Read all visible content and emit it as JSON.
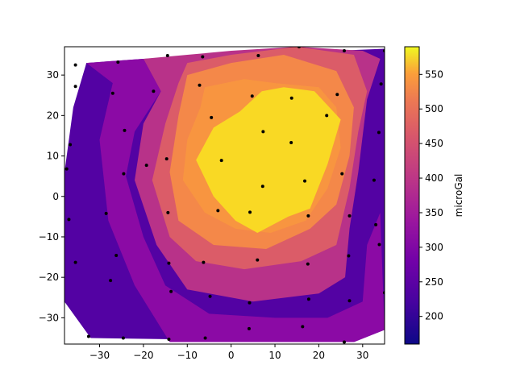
{
  "chart_data": {
    "type": "contour",
    "title": "",
    "xlabel": "",
    "ylabel": "",
    "xlim": [
      -38,
      35
    ],
    "ylim": [
      -36.5,
      37
    ],
    "x_ticks": [
      -30,
      -20,
      -10,
      0,
      10,
      20,
      30
    ],
    "y_ticks": [
      -30,
      -20,
      -10,
      0,
      10,
      20,
      30
    ],
    "colorbar": {
      "label": "microGal",
      "range": [
        160,
        590
      ],
      "ticks": [
        200,
        250,
        300,
        350,
        400,
        450,
        500,
        550
      ],
      "colormap": "plasma"
    },
    "levels": [
      {
        "from": 160,
        "to": 200,
        "color": "#2c0594"
      },
      {
        "from": 200,
        "to": 250,
        "color": "#5302a3"
      },
      {
        "from": 250,
        "to": 300,
        "color": "#8b0aa5"
      },
      {
        "from": 300,
        "to": 350,
        "color": "#b83289"
      },
      {
        "from": 350,
        "to": 400,
        "color": "#db5c68"
      },
      {
        "from": 400,
        "to": 450,
        "color": "#f48849"
      },
      {
        "from": 450,
        "to": 500,
        "color": "#f89540"
      },
      {
        "from": 500,
        "to": 590,
        "color": "#f9d924"
      }
    ],
    "bands": [
      {
        "level_index": 0,
        "polygon": [
          [
            -38,
            -26
          ],
          [
            -38,
            -14
          ],
          [
            -30,
            -8
          ],
          [
            -24,
            -20
          ],
          [
            -20,
            -34
          ],
          [
            -30,
            -35
          ]
        ]
      },
      {
        "level_index": 1,
        "polygon": [
          [
            -33,
            33
          ],
          [
            -27,
            28
          ],
          [
            -30,
            15
          ],
          [
            -28,
            -5
          ],
          [
            -22,
            -22
          ],
          [
            -14,
            -33
          ],
          [
            -25,
            -35
          ],
          [
            -32,
            -35
          ],
          [
            -38,
            -26
          ],
          [
            -38,
            6
          ],
          [
            -36,
            22
          ]
        ]
      },
      {
        "level_index": 1,
        "polygon": [
          [
            35,
            -15
          ],
          [
            31,
            -32
          ],
          [
            35,
            -33
          ]
        ]
      },
      {
        "level_index": 2,
        "polygon": [
          [
            -33,
            33
          ],
          [
            -20,
            34
          ],
          [
            -16,
            26
          ],
          [
            -22,
            16
          ],
          [
            -24,
            5
          ],
          [
            -20,
            -10
          ],
          [
            -15,
            -22
          ],
          [
            -5,
            -29
          ],
          [
            10,
            -30
          ],
          [
            22,
            -30
          ],
          [
            30,
            -26
          ],
          [
            31,
            -12
          ],
          [
            34,
            -4
          ],
          [
            35,
            -33
          ],
          [
            28,
            -36
          ],
          [
            -14,
            -36
          ],
          [
            -22,
            -22
          ],
          [
            -28,
            -6
          ],
          [
            -30,
            14
          ],
          [
            -27,
            28
          ]
        ]
      },
      {
        "level_index": 3,
        "polygon": [
          [
            -20,
            34
          ],
          [
            -10,
            35
          ],
          [
            0,
            36
          ],
          [
            15,
            37
          ],
          [
            30,
            36
          ],
          [
            34,
            34
          ],
          [
            31,
            24
          ],
          [
            29,
            6
          ],
          [
            27,
            -8
          ],
          [
            26,
            -20
          ],
          [
            20,
            -24
          ],
          [
            5,
            -26
          ],
          [
            -10,
            -23
          ],
          [
            -17,
            -12
          ],
          [
            -22,
            4
          ],
          [
            -20,
            18
          ],
          [
            -16,
            26
          ]
        ]
      },
      {
        "level_index": 4,
        "polygon": [
          [
            -10,
            33
          ],
          [
            0,
            35
          ],
          [
            15,
            37
          ],
          [
            28,
            35
          ],
          [
            31,
            26
          ],
          [
            29,
            16
          ],
          [
            27,
            2
          ],
          [
            24,
            -12
          ],
          [
            16,
            -16
          ],
          [
            3,
            -18
          ],
          [
            -8,
            -16
          ],
          [
            -14,
            -10
          ],
          [
            -18,
            4
          ],
          [
            -15,
            18
          ],
          [
            -12,
            28
          ]
        ]
      },
      {
        "level_index": 5,
        "polygon": [
          [
            -10,
            30
          ],
          [
            0,
            33
          ],
          [
            12,
            35
          ],
          [
            24,
            31
          ],
          [
            28,
            22
          ],
          [
            27,
            10
          ],
          [
            24,
            -2
          ],
          [
            18,
            -8
          ],
          [
            8,
            -13
          ],
          [
            -4,
            -12
          ],
          [
            -12,
            -6
          ],
          [
            -14,
            6
          ],
          [
            -12,
            20
          ]
        ]
      },
      {
        "level_index": 6,
        "polygon": [
          [
            -6,
            27
          ],
          [
            3,
            29
          ],
          [
            10,
            28
          ],
          [
            20,
            27
          ],
          [
            24,
            22
          ],
          [
            25,
            12
          ],
          [
            22,
            2
          ],
          [
            17,
            -6
          ],
          [
            9,
            -9
          ],
          [
            1,
            -8
          ],
          [
            -6,
            -4
          ],
          [
            -11,
            4
          ],
          [
            -10,
            14
          ],
          [
            -7,
            22
          ]
        ]
      },
      {
        "level_index": 7,
        "polygon": [
          [
            2,
            21
          ],
          [
            7,
            26
          ],
          [
            12,
            27
          ],
          [
            19,
            26
          ],
          [
            25,
            19
          ],
          [
            22,
            8
          ],
          [
            18,
            -3
          ],
          [
            13,
            -5
          ],
          [
            6,
            -9
          ],
          [
            1,
            -6
          ],
          [
            -4,
            0
          ],
          [
            -8,
            9
          ],
          [
            -4,
            17
          ]
        ]
      }
    ],
    "points": [
      [
        -35.5,
        32.5
      ],
      [
        -25.8,
        33.2
      ],
      [
        -14.5,
        34.8
      ],
      [
        -6.5,
        34.5
      ],
      [
        6.2,
        34.8
      ],
      [
        15.5,
        37.0
      ],
      [
        25.8,
        36.0
      ],
      [
        35.0,
        36.0
      ],
      [
        -35.5,
        27.2
      ],
      [
        -27.0,
        25.5
      ],
      [
        -17.7,
        26.0
      ],
      [
        -7.2,
        27.5
      ],
      [
        4.8,
        24.8
      ],
      [
        13.8,
        24.3
      ],
      [
        24.2,
        25.2
      ],
      [
        34.2,
        27.8
      ],
      [
        -24.3,
        16.3
      ],
      [
        -4.5,
        19.5
      ],
      [
        7.3,
        16.0
      ],
      [
        21.8,
        20.0
      ],
      [
        33.7,
        15.8
      ],
      [
        -36.7,
        12.8
      ],
      [
        -37.5,
        6.8
      ],
      [
        -19.3,
        7.7
      ],
      [
        -14.7,
        9.3
      ],
      [
        -2.2,
        8.9
      ],
      [
        13.7,
        13.3
      ],
      [
        -24.5,
        5.6
      ],
      [
        7.2,
        2.5
      ],
      [
        16.8,
        3.8
      ],
      [
        25.3,
        5.6
      ],
      [
        32.6,
        4.0
      ],
      [
        -3.0,
        -3.5
      ],
      [
        4.3,
        -3.9
      ],
      [
        -14.4,
        -4.0
      ],
      [
        17.6,
        -4.8
      ],
      [
        27.0,
        -4.8
      ],
      [
        -28.5,
        -4.2
      ],
      [
        -37.0,
        -5.7
      ],
      [
        33.0,
        -7.0
      ],
      [
        33.8,
        -11.9
      ],
      [
        -35.5,
        -16.3
      ],
      [
        -26.2,
        -14.6
      ],
      [
        -14.2,
        -16.5
      ],
      [
        -6.3,
        -16.3
      ],
      [
        6.0,
        -15.7
      ],
      [
        17.5,
        -16.7
      ],
      [
        26.8,
        -14.7
      ],
      [
        -27.5,
        -20.8
      ],
      [
        -13.7,
        -23.5
      ],
      [
        -4.8,
        -24.7
      ],
      [
        17.7,
        -25.4
      ],
      [
        27.0,
        -25.8
      ],
      [
        35.0,
        -23.8
      ],
      [
        4.2,
        -26.3
      ],
      [
        -32.5,
        -34.6
      ],
      [
        -24.6,
        -35.0
      ],
      [
        -14.2,
        -35.3
      ],
      [
        -5.9,
        -35.0
      ],
      [
        4.1,
        -32.7
      ],
      [
        16.3,
        -32.2
      ],
      [
        25.8,
        -36.0
      ]
    ]
  }
}
